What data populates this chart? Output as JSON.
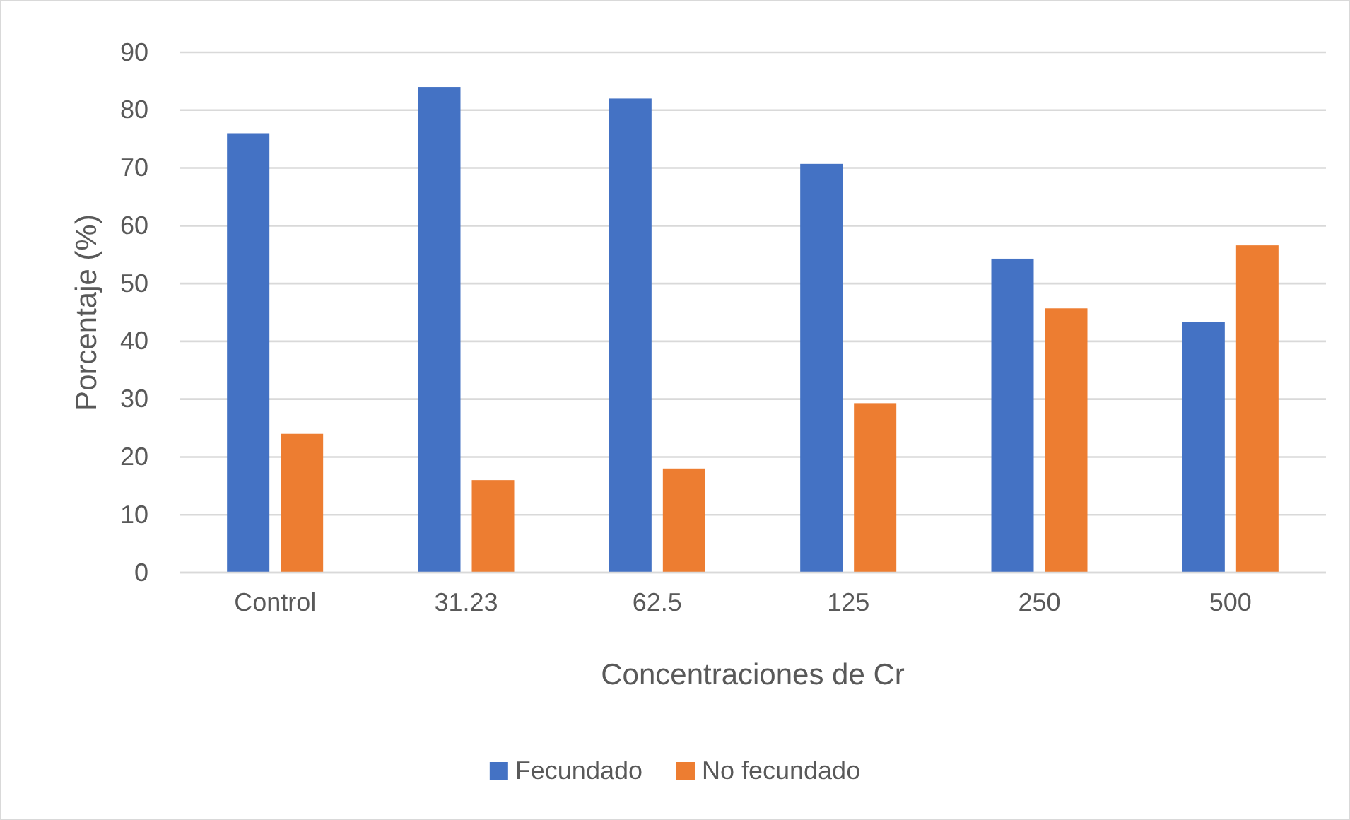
{
  "chart_data": {
    "type": "bar",
    "xlabel": "Concentraciones de Cr",
    "ylabel": "Porcentaje (%)",
    "categories": [
      "Control",
      "31.23",
      "62.5",
      "125",
      "250",
      "500"
    ],
    "series": [
      {
        "name": "Fecundado",
        "color": "#4472c4",
        "values": [
          76,
          84,
          82,
          70.7,
          54.3,
          43.4
        ]
      },
      {
        "name": "No fecundado",
        "color": "#ed7d31",
        "values": [
          24,
          16,
          18,
          29.3,
          45.7,
          56.6
        ]
      }
    ],
    "ylim": [
      0,
      90
    ],
    "yticks": [
      0,
      10,
      20,
      30,
      40,
      50,
      60,
      70,
      80,
      90
    ],
    "grid": "y",
    "legend": "bottom"
  }
}
